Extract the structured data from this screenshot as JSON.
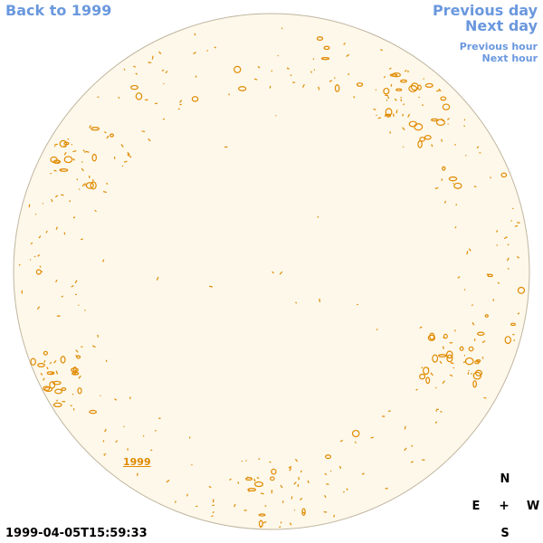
{
  "nav": {
    "back_label": "Back to 1999",
    "prev_day_label": "Previous day",
    "next_day_label": "Next day",
    "prev_hour_label": "Previous hour",
    "next_hour_label": "Next hour"
  },
  "disk": {
    "year_label": "1999",
    "fill_color": "#fdf8ea",
    "border_color": "#c0b6a0",
    "contour_color": "#e08a00"
  },
  "compass": {
    "n": "N",
    "s": "S",
    "e": "E",
    "w": "W",
    "center": "+"
  },
  "timestamp": "1999-04-05T15:59:33",
  "colors": {
    "link": "#6a98de"
  }
}
